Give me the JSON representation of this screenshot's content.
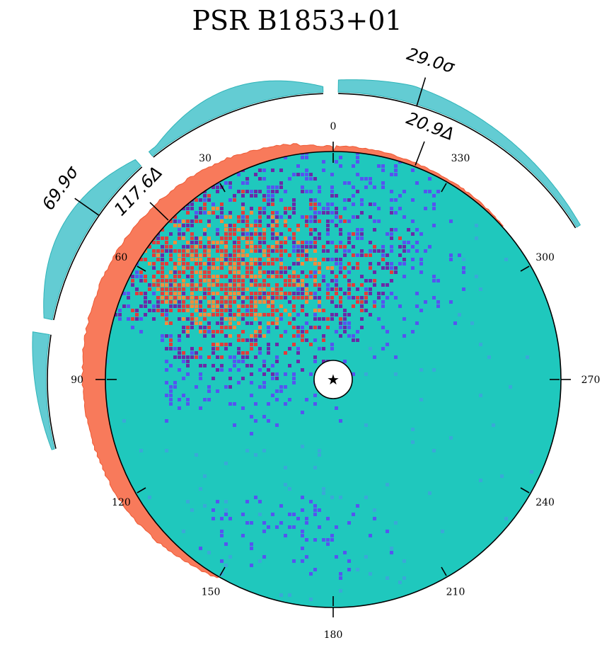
{
  "chart_data": {
    "type": "heatmap",
    "title": "PSR B1853+01",
    "angular_tick_labels": [
      "0",
      "30",
      "60",
      "90",
      "120",
      "150",
      "180",
      "210",
      "240",
      "270",
      "300",
      "330"
    ],
    "angular_ticks_deg": [
      0,
      30,
      60,
      90,
      120,
      150,
      180,
      210,
      240,
      270,
      300,
      330
    ],
    "center_marker": "★",
    "annotations": [
      {
        "label": "29.0σ",
        "ring": "outer",
        "position_deg": 343
      },
      {
        "label": "69.9σ",
        "ring": "outer",
        "position_deg": 55
      },
      {
        "label": "20.9Δ",
        "ring": "inner",
        "position_deg": 339
      },
      {
        "label": "117.6Δ",
        "ring": "inner",
        "position_deg": 46
      }
    ],
    "outer_arcs_deg": [
      {
        "start": 302,
        "end": 359
      },
      {
        "start": 2,
        "end": 39
      },
      {
        "start": 42,
        "end": 78
      },
      {
        "start": 81,
        "end": 104
      }
    ],
    "inner_ring_coverage_deg": [
      0,
      150
    ],
    "colors": {
      "map_background": "#1fc8bd",
      "outer_band": "#63ccd3",
      "inner_band": "#f87a5b",
      "pixel_blue": "#5555f0",
      "pixel_purple": "#6a2aa8",
      "pixel_red": "#e33b3b",
      "pixel_orange": "#fa8a3a"
    }
  }
}
